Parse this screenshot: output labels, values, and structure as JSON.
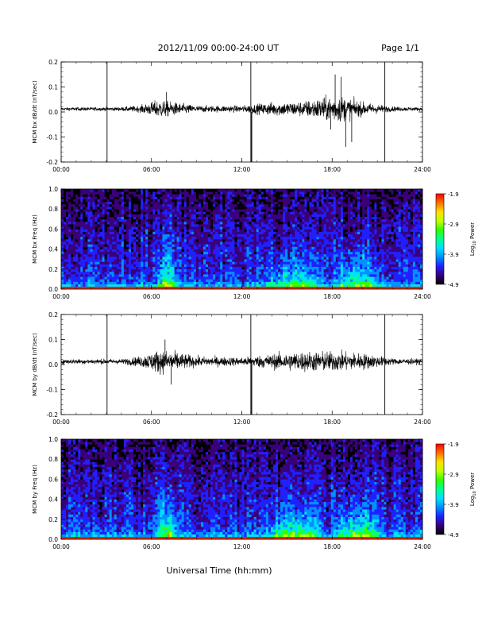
{
  "header": {
    "title": "2012/11/09  00:00-24:00 UT",
    "page": "Page 1/1"
  },
  "xaxis": {
    "label": "Universal Time (hh:mm)",
    "ticks": [
      "00:00",
      "06:00",
      "12:00",
      "18:00",
      "24:00"
    ]
  },
  "colorbar": {
    "label": "Log",
    "label_sub": "10",
    "label_tail": " Power",
    "ticks": [
      "-1.9",
      "-2.9",
      "-3.9",
      "-4.9"
    ],
    "range": [
      -4.9,
      -1.9
    ],
    "colors": [
      "#000000",
      "#3a007a",
      "#2020ff",
      "#0090ff",
      "#00e0ff",
      "#00ff90",
      "#30ff00",
      "#c0ff00",
      "#ffe000",
      "#ff7000",
      "#ff0000"
    ]
  },
  "chart_data": [
    {
      "type": "line",
      "title": "",
      "ylabel": "MCM bx dB/dt (nT/sec)",
      "xlim": [
        0,
        24
      ],
      "ylim": [
        -0.2,
        0.2
      ],
      "yticks": [
        "0.2",
        "0.1",
        "0.0",
        "-0.1",
        "-0.2"
      ],
      "xlabel": "",
      "features": {
        "spikes_hours": [
          3.05,
          12.6,
          21.5
        ],
        "activity_envelope": [
          {
            "x": 0,
            "amp": 0.01
          },
          {
            "x": 4,
            "amp": 0.012
          },
          {
            "x": 5.2,
            "amp": 0.02
          },
          {
            "x": 6.5,
            "amp": 0.055
          },
          {
            "x": 7.5,
            "amp": 0.04
          },
          {
            "x": 9,
            "amp": 0.02
          },
          {
            "x": 12,
            "amp": 0.02
          },
          {
            "x": 14,
            "amp": 0.04
          },
          {
            "x": 16,
            "amp": 0.045
          },
          {
            "x": 17.5,
            "amp": 0.07
          },
          {
            "x": 18.5,
            "amp": 0.08
          },
          {
            "x": 20,
            "amp": 0.04
          },
          {
            "x": 22,
            "amp": 0.015
          },
          {
            "x": 24,
            "amp": 0.01
          }
        ],
        "extreme_events": [
          {
            "x": 18.2,
            "y": 0.15
          },
          {
            "x": 18.6,
            "y": 0.14
          },
          {
            "x": 17.9,
            "y": -0.07
          },
          {
            "x": 18.9,
            "y": -0.14
          },
          {
            "x": 19.3,
            "y": -0.12
          },
          {
            "x": 7.0,
            "y": 0.08
          }
        ]
      }
    },
    {
      "type": "heatmap",
      "title": "",
      "ylabel": "MCM bx Freq (Hz)",
      "xlim": [
        0,
        24
      ],
      "ylim": [
        0,
        1.0
      ],
      "yticks": [
        "1.0",
        "0.8",
        "0.6",
        "0.4",
        "0.2",
        "0.0"
      ],
      "zlim": [
        -4.9,
        -1.9
      ],
      "xlabel": "",
      "features": {
        "activity_bands": [
          {
            "from": 6.3,
            "to": 7.8,
            "peak_freq": 0.25,
            "level": -2.7
          },
          {
            "from": 13.5,
            "to": 17.5,
            "peak_freq": 0.18,
            "level": -2.9
          },
          {
            "from": 18.0,
            "to": 21.5,
            "peak_freq": 0.2,
            "level": -2.8
          }
        ]
      }
    },
    {
      "type": "line",
      "title": "",
      "ylabel": "MCM by dB/dt (nT/sec)",
      "xlim": [
        0,
        24
      ],
      "ylim": [
        -0.2,
        0.2
      ],
      "yticks": [
        "0.2",
        "0.1",
        "0.0",
        "-0.1",
        "-0.2"
      ],
      "xlabel": "",
      "features": {
        "spikes_hours": [
          3.05,
          12.6,
          21.5
        ],
        "activity_envelope": [
          {
            "x": 0,
            "amp": 0.015
          },
          {
            "x": 4,
            "amp": 0.015
          },
          {
            "x": 5.2,
            "amp": 0.03
          },
          {
            "x": 6.5,
            "amp": 0.07
          },
          {
            "x": 7.5,
            "amp": 0.06
          },
          {
            "x": 9,
            "amp": 0.03
          },
          {
            "x": 12,
            "amp": 0.025
          },
          {
            "x": 14,
            "amp": 0.045
          },
          {
            "x": 16,
            "amp": 0.06
          },
          {
            "x": 18,
            "amp": 0.06
          },
          {
            "x": 20,
            "amp": 0.05
          },
          {
            "x": 22,
            "amp": 0.02
          },
          {
            "x": 24,
            "amp": 0.015
          }
        ],
        "extreme_events": [
          {
            "x": 6.9,
            "y": 0.1
          },
          {
            "x": 7.3,
            "y": -0.08
          }
        ]
      }
    },
    {
      "type": "heatmap",
      "title": "",
      "ylabel": "MCM by Freq (Hz)",
      "xlim": [
        0,
        24
      ],
      "ylim": [
        0,
        1.0
      ],
      "yticks": [
        "1.0",
        "0.8",
        "0.6",
        "0.4",
        "0.2",
        "0.0"
      ],
      "zlim": [
        -4.9,
        -1.9
      ],
      "xlabel": "",
      "features": {
        "activity_bands": [
          {
            "from": 6.3,
            "to": 7.8,
            "peak_freq": 0.28,
            "level": -2.6
          },
          {
            "from": 13.5,
            "to": 17.5,
            "peak_freq": 0.2,
            "level": -2.7
          },
          {
            "from": 18.0,
            "to": 21.5,
            "peak_freq": 0.22,
            "level": -2.7
          }
        ]
      }
    }
  ]
}
